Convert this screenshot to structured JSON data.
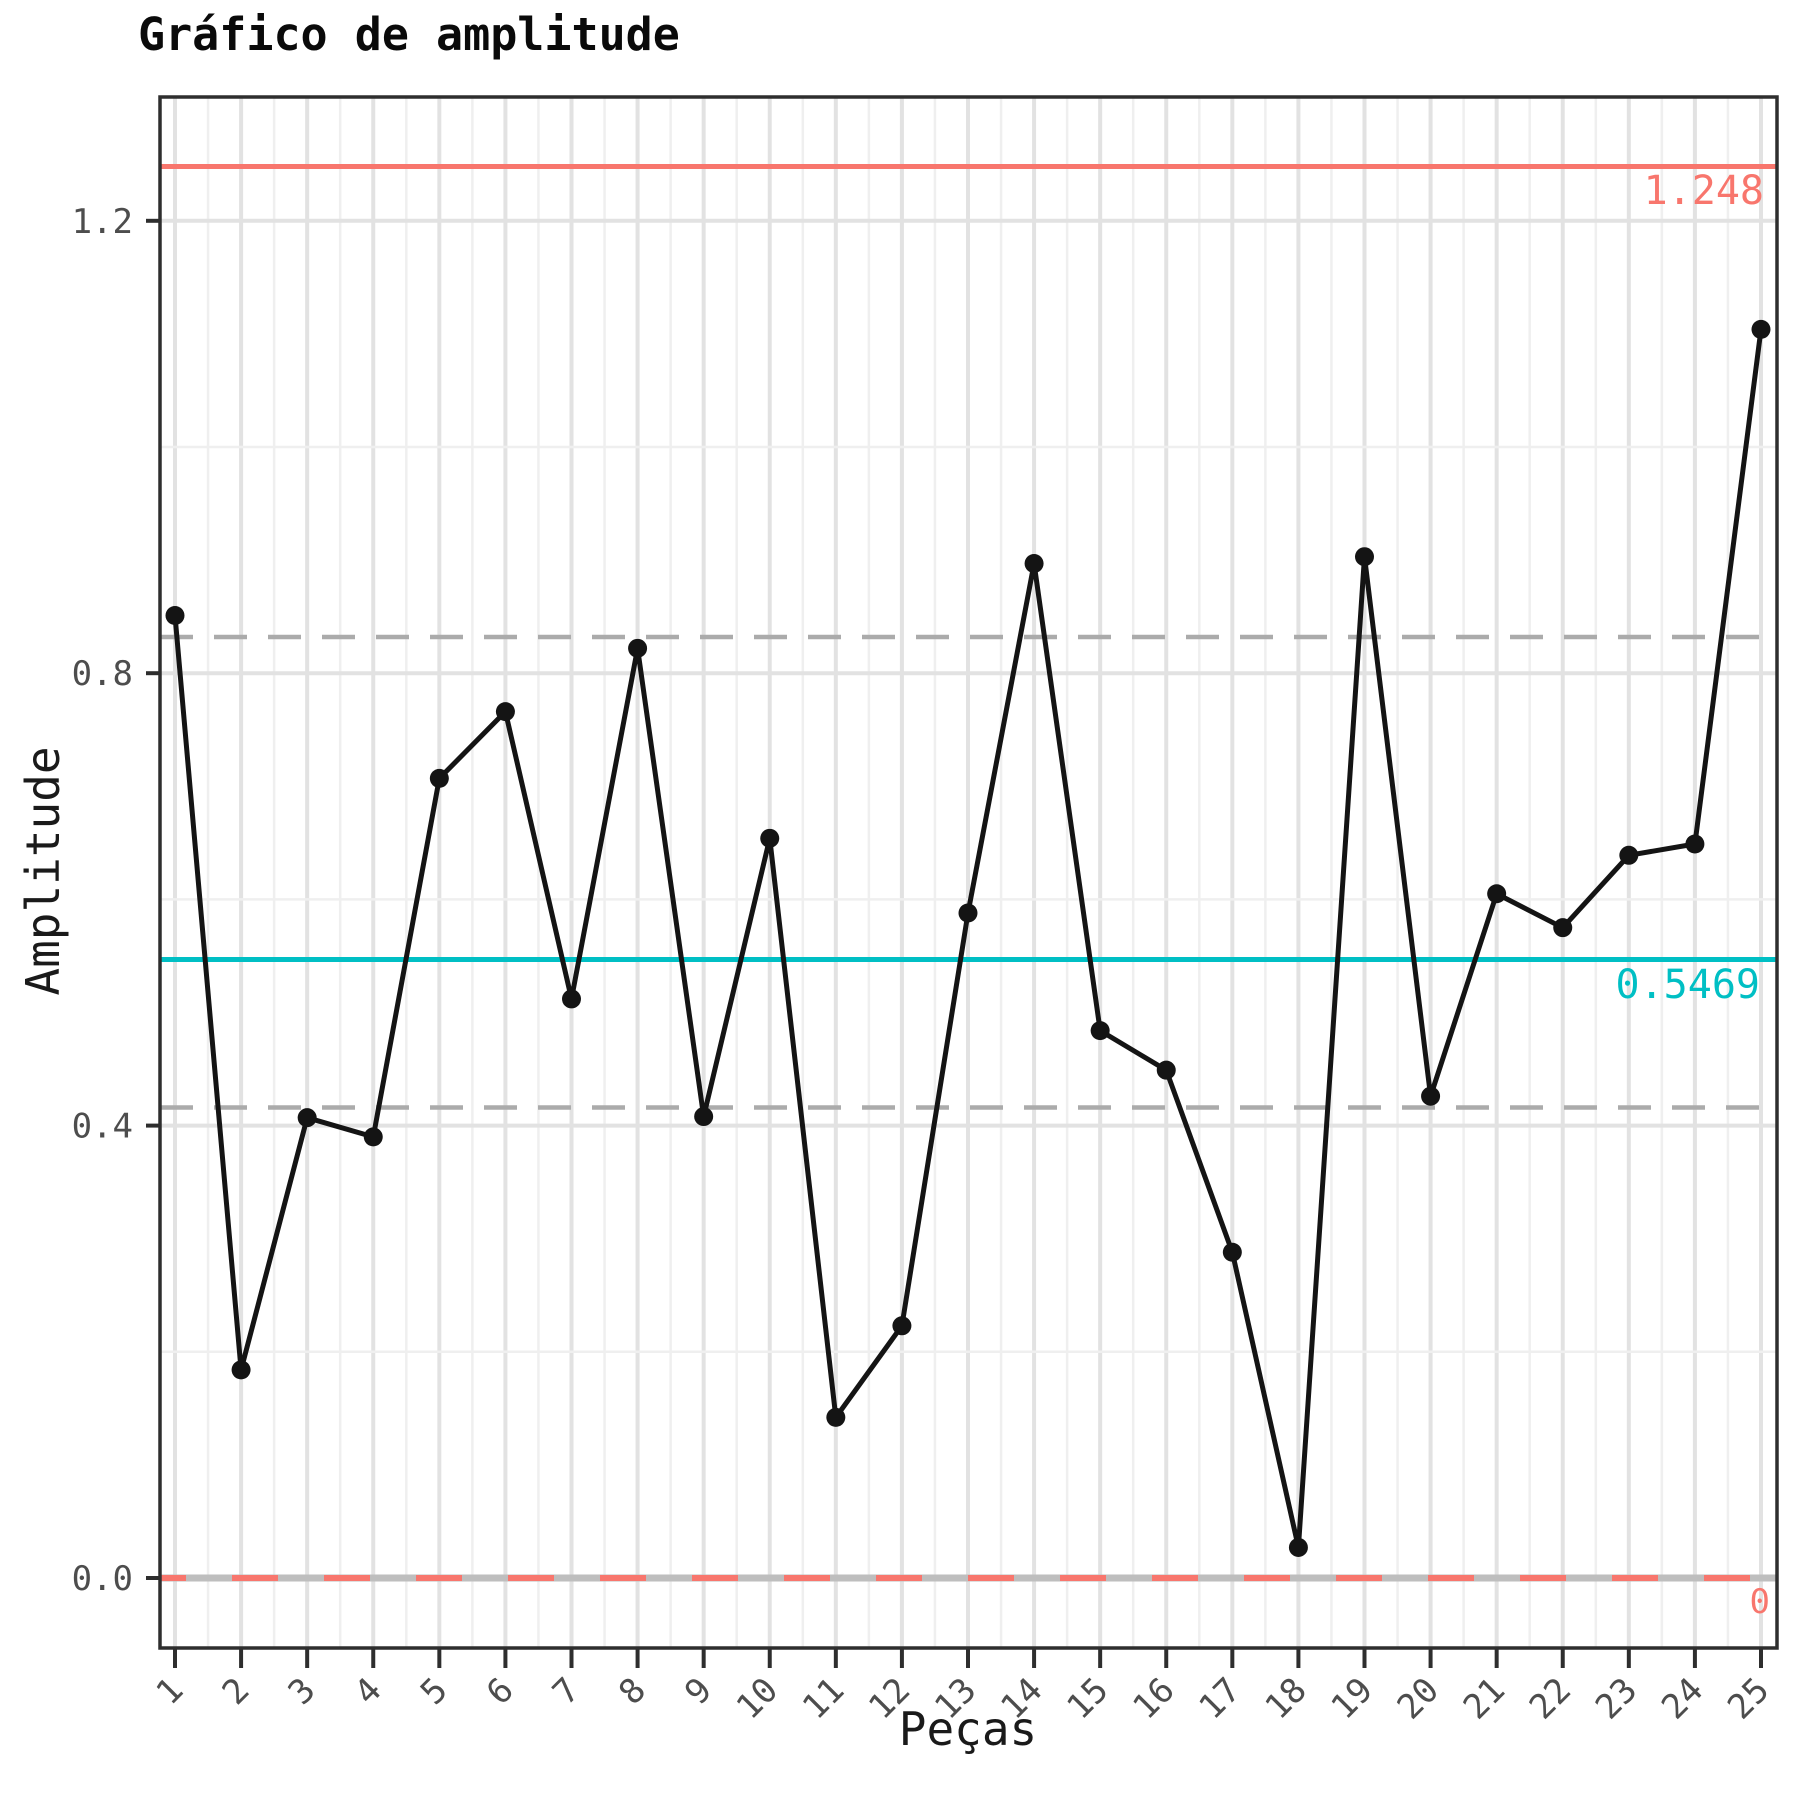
{
  "chart_data": {
    "type": "line",
    "title": "Gráfico de amplitude",
    "xlabel": "Peças",
    "ylabel": "Amplitude",
    "x": [
      1,
      2,
      3,
      4,
      5,
      6,
      7,
      8,
      9,
      10,
      11,
      12,
      13,
      14,
      15,
      16,
      17,
      18,
      19,
      20,
      21,
      22,
      23,
      24,
      25
    ],
    "values": [
      0.851,
      0.184,
      0.407,
      0.39,
      0.707,
      0.766,
      0.512,
      0.822,
      0.408,
      0.654,
      0.142,
      0.223,
      0.588,
      0.897,
      0.484,
      0.449,
      0.288,
      0.027,
      0.903,
      0.426,
      0.605,
      0.575,
      0.639,
      0.649,
      1.104
    ],
    "ylim": [
      -0.062,
      1.31
    ],
    "yticks": {
      "values": [
        0.0,
        0.4,
        0.8,
        1.2
      ],
      "labels": [
        "0.0",
        "0.4",
        "0.8",
        "1.2"
      ]
    },
    "yminor": [
      0.2,
      0.6,
      1.0
    ],
    "grid": "on",
    "legend": "none",
    "control_lines": {
      "ucl": {
        "value": 1.248,
        "label": "1.248",
        "style": "solid"
      },
      "center": {
        "value": 0.5469,
        "label": "0.5469",
        "style": "solid"
      },
      "lcl": {
        "value": 0,
        "label": "0",
        "style": "dashed"
      },
      "zone_lines": {
        "values": [
          0.416,
          0.832
        ],
        "style": "dashed"
      }
    },
    "colors": {
      "ucl": "#F8766D",
      "center": "#00BFC4",
      "lcl_dash": "#F8766D",
      "lcl_base": "#BEBEBE",
      "zone": "#ABABAB",
      "series": "#141414",
      "grid_major": "#E2E2E2",
      "grid_minor": "#EFEFEF",
      "axis": "#2E2E2E",
      "tick_label": "#4D4D4D",
      "background": "#FFFFFF"
    }
  }
}
